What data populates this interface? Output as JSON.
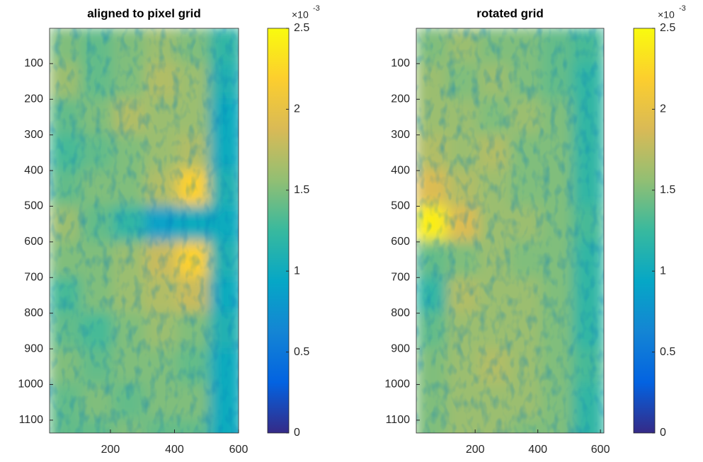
{
  "chart_data": [
    {
      "type": "heatmap",
      "title": "aligned to pixel grid",
      "x": [
        60,
        160,
        260,
        360,
        460,
        560
      ],
      "y": [
        50,
        150,
        250,
        350,
        450,
        550,
        650,
        750,
        850,
        950,
        1050,
        1150
      ],
      "z": [
        [
          1.5,
          1.4,
          1.5,
          1.6,
          1.5,
          1.2
        ],
        [
          1.6,
          1.4,
          1.5,
          1.7,
          1.6,
          1.1
        ],
        [
          1.4,
          1.5,
          1.7,
          1.6,
          1.6,
          1.0
        ],
        [
          1.3,
          1.4,
          1.5,
          1.6,
          1.7,
          1.0
        ],
        [
          1.4,
          1.5,
          1.5,
          1.7,
          2.2,
          1.1
        ],
        [
          1.6,
          1.4,
          1.2,
          0.9,
          1.0,
          1.0
        ],
        [
          1.5,
          1.5,
          1.6,
          1.8,
          2.2,
          1.1
        ],
        [
          1.3,
          1.5,
          1.6,
          1.7,
          1.8,
          1.0
        ],
        [
          1.4,
          1.3,
          1.5,
          1.6,
          1.5,
          1.1
        ],
        [
          1.5,
          1.4,
          1.5,
          1.5,
          1.4,
          1.0
        ],
        [
          1.4,
          1.5,
          1.4,
          1.5,
          1.5,
          1.0
        ],
        [
          1.4,
          1.4,
          1.5,
          1.4,
          1.4,
          1.0
        ]
      ],
      "xlim": [
        10,
        600
      ],
      "ylim": [
        1,
        1136
      ],
      "y_reversed": true,
      "xticks": [
        200,
        400,
        600
      ],
      "yticks": [
        100,
        200,
        300,
        400,
        500,
        600,
        700,
        800,
        900,
        1000,
        1100
      ],
      "colormap": [
        "#352a87",
        "#0363e1",
        "#1485d4",
        "#06a7c6",
        "#38b99e",
        "#92bf73",
        "#d9ba56",
        "#fcce2e",
        "#f9fb0e"
      ],
      "colorbar": {
        "clim": [
          0,
          2.5
        ],
        "ticks": [
          0,
          0.5,
          1,
          1.5,
          2,
          2.5
        ],
        "multiplier": "×10",
        "exponent": "-3"
      }
    },
    {
      "type": "heatmap",
      "title": "rotated grid",
      "x": [
        62,
        162,
        262,
        362,
        462,
        562
      ],
      "y": [
        50,
        150,
        250,
        350,
        450,
        550,
        650,
        750,
        850,
        950,
        1050,
        1150
      ],
      "z": [
        [
          1.5,
          1.6,
          1.5,
          1.5,
          1.4,
          1.3
        ],
        [
          1.6,
          1.5,
          1.6,
          1.5,
          1.4,
          1.2
        ],
        [
          1.6,
          1.6,
          1.5,
          1.6,
          1.5,
          1.2
        ],
        [
          1.7,
          1.6,
          1.7,
          1.5,
          1.5,
          1.2
        ],
        [
          1.9,
          1.7,
          1.6,
          1.5,
          1.5,
          1.2
        ],
        [
          2.4,
          1.9,
          1.6,
          1.6,
          1.5,
          1.3
        ],
        [
          1.4,
          1.5,
          1.6,
          1.5,
          1.5,
          1.2
        ],
        [
          1.2,
          1.7,
          1.6,
          1.6,
          1.5,
          1.2
        ],
        [
          1.4,
          1.6,
          1.6,
          1.6,
          1.5,
          1.2
        ],
        [
          1.5,
          1.6,
          1.7,
          1.6,
          1.5,
          1.3
        ],
        [
          1.5,
          1.6,
          1.6,
          1.6,
          1.5,
          1.2
        ],
        [
          1.5,
          1.6,
          1.6,
          1.5,
          1.5,
          1.2
        ]
      ],
      "xlim": [
        12,
        611
      ],
      "ylim": [
        1,
        1136
      ],
      "y_reversed": true,
      "xticks": [
        200,
        400,
        600
      ],
      "yticks": [
        100,
        200,
        300,
        400,
        500,
        600,
        700,
        800,
        900,
        1000,
        1100
      ],
      "colormap": [
        "#352a87",
        "#0363e1",
        "#1485d4",
        "#06a7c6",
        "#38b99e",
        "#92bf73",
        "#d9ba56",
        "#fcce2e",
        "#f9fb0e"
      ],
      "colorbar": {
        "clim": [
          0,
          2.5
        ],
        "ticks": [
          0,
          0.5,
          1,
          1.5,
          2,
          2.5
        ],
        "multiplier": "×10",
        "exponent": "-3"
      }
    }
  ]
}
